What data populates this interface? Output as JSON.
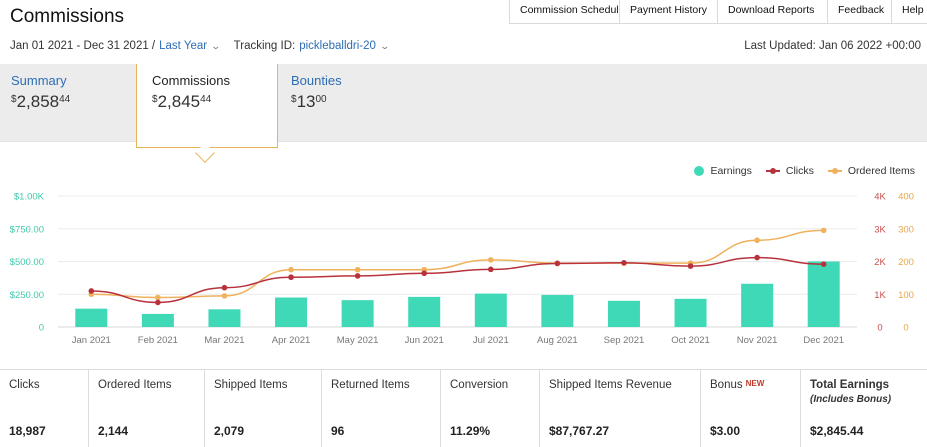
{
  "header": {
    "title": "Commissions",
    "nav": [
      "Commission Schedule",
      "Payment History",
      "Download Reports",
      "Feedback",
      "Help"
    ]
  },
  "filters": {
    "date_range": "Jan 01 2021 - Dec 31 2021 /",
    "period": "Last Year",
    "tracking_label": "Tracking ID:",
    "tracking_id": "pickleballdri-20",
    "last_updated": "Last Updated: Jan 06 2022 +00:00"
  },
  "summary": {
    "tabs": [
      {
        "label": "Summary",
        "dollars": "2,858",
        "cents": "44"
      },
      {
        "label": "Commissions",
        "dollars": "2,845",
        "cents": "44"
      },
      {
        "label": "Bounties",
        "dollars": "13",
        "cents": "00"
      }
    ],
    "currency": "$"
  },
  "legend": [
    {
      "label": "Earnings",
      "color": "#3fd9b8"
    },
    {
      "label": "Clicks",
      "color": "#b8323e"
    },
    {
      "label": "Ordered Items",
      "color": "#efb15b"
    }
  ],
  "chart_data": {
    "type": "bar+line",
    "categories": [
      "Jan 2021",
      "Feb 2021",
      "Mar 2021",
      "Apr 2021",
      "May 2021",
      "Jun 2021",
      "Jul 2021",
      "Aug 2021",
      "Sep 2021",
      "Oct 2021",
      "Nov 2021",
      "Dec 2021"
    ],
    "series": [
      {
        "name": "Earnings",
        "type": "bar",
        "axis": "left",
        "color": "#3fd9b8",
        "values": [
          140,
          100,
          135,
          225,
          205,
          230,
          255,
          245,
          200,
          215,
          330,
          500
        ]
      },
      {
        "name": "Clicks",
        "type": "line",
        "axis": "right",
        "color": "#b8323e",
        "values": [
          1100,
          750,
          1200,
          1520,
          1560,
          1640,
          1760,
          1940,
          1960,
          1860,
          2120,
          1920
        ]
      },
      {
        "name": "Ordered Items",
        "type": "line",
        "axis": "right2",
        "color": "#efb15b",
        "values": [
          100,
          90,
          95,
          175,
          175,
          175,
          205,
          195,
          195,
          195,
          265,
          295
        ]
      }
    ],
    "y_left": {
      "ticks": [
        "0",
        "$250.00",
        "$500.00",
        "$750.00",
        "$1.00K"
      ],
      "min": 0,
      "max": 1000
    },
    "y_right": {
      "ticks": [
        "0",
        "1K",
        "2K",
        "3K",
        "4K"
      ],
      "min": 0,
      "max": 4000
    },
    "y_right2": {
      "ticks": [
        "0",
        "100",
        "200",
        "300",
        "400"
      ],
      "min": 0,
      "max": 400
    },
    "grid": true,
    "legend_position": "top-right"
  },
  "stats": [
    {
      "label": "Clicks",
      "value": "18,987"
    },
    {
      "label": "Ordered Items",
      "value": "2,144"
    },
    {
      "label": "Shipped Items",
      "value": "2,079"
    },
    {
      "label": "Returned Items",
      "value": "96"
    },
    {
      "label": "Conversion",
      "value": "11.29%"
    },
    {
      "label": "Shipped Items Revenue",
      "value": "$87,767.27"
    },
    {
      "label": "Bonus",
      "badge": "NEW",
      "value": "$3.00"
    },
    {
      "label": "Total Earnings",
      "sub": "(Includes Bonus)",
      "value": "$2,845.44"
    }
  ]
}
